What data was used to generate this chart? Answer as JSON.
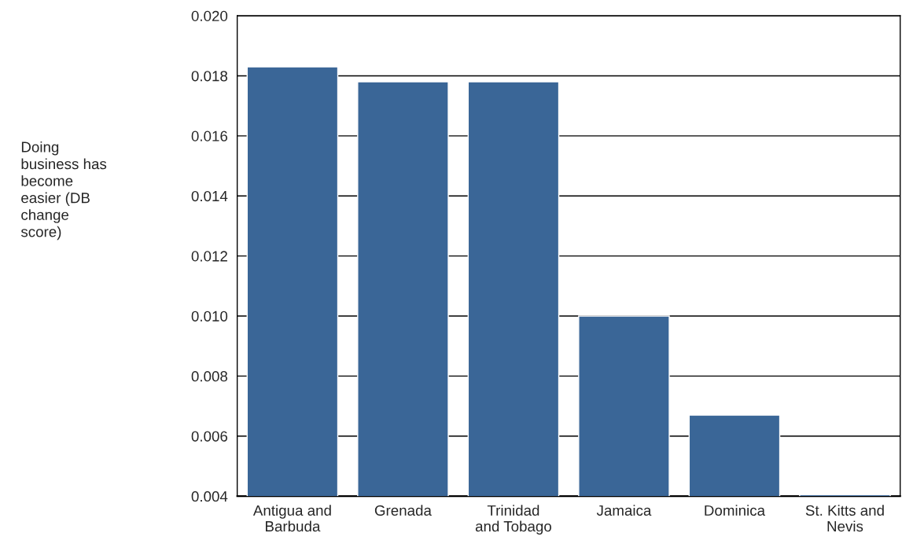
{
  "chart_data": {
    "type": "bar",
    "annotations": [
      "Doing\nbusiness has\nbecome\neasier (DB\nchange\nscore)"
    ],
    "categories": [
      "Antigua and\nBarbuda",
      "Grenada",
      "Trinidad\nand Tobago",
      "Jamaica",
      "Dominica",
      "St. Kitts and\nNevis"
    ],
    "values": [
      0.0183,
      0.0178,
      0.0178,
      0.01,
      0.0067,
      0.00405
    ],
    "color": "#3a6697",
    "ylim": [
      0.004,
      0.02
    ],
    "yticks": [
      {
        "value": 0.004,
        "label": "0.004"
      },
      {
        "value": 0.006,
        "label": "0.006"
      },
      {
        "value": 0.008,
        "label": "0.008"
      },
      {
        "value": 0.01,
        "label": "0.010"
      },
      {
        "value": 0.012,
        "label": "0.012"
      },
      {
        "value": 0.014,
        "label": "0.014"
      },
      {
        "value": 0.016,
        "label": "0.016"
      },
      {
        "value": 0.018,
        "label": "0.018"
      },
      {
        "value": 0.02,
        "label": "0.020"
      }
    ],
    "grid": "y"
  }
}
